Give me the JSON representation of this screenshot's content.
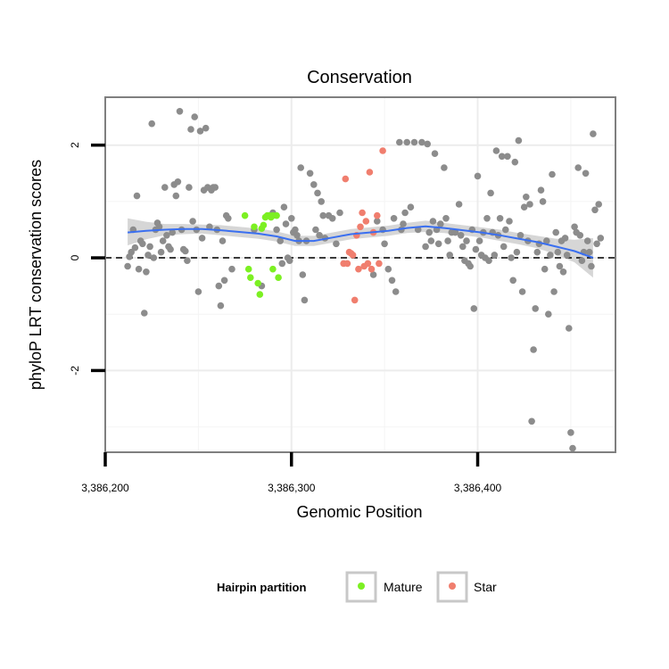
{
  "chart_data": {
    "type": "scatter",
    "title": "Conservation",
    "xlabel": "Genomic Position",
    "ylabel": "phyloP LRT conservation scores",
    "xlim": [
      3386200,
      3386474
    ],
    "ylim": [
      -3.45,
      2.85
    ],
    "x_ticks": [
      3386200,
      3386300,
      3386400
    ],
    "x_tick_labels": [
      "3,386,200",
      "3,386,300",
      "3,386,400"
    ],
    "y_ticks": [
      -2,
      0,
      2
    ],
    "y_tick_labels": [
      "-2",
      "0",
      "2"
    ],
    "grid": true,
    "reference_line": {
      "y": 0,
      "style": "dashed"
    },
    "legend": {
      "title": "Hairpin partition",
      "position": "bottom",
      "entries": [
        {
          "label": "Mature",
          "color": "#7cf022"
        },
        {
          "label": "Star",
          "color": "#f07e6e"
        }
      ]
    },
    "colors": {
      "other": "#8c8c8c",
      "smooth": "#3a6ff0",
      "band": "#cfcfcf"
    },
    "smooth_line": {
      "x": [
        3386212,
        3386222,
        3386232,
        3386242,
        3386252,
        3386262,
        3386272,
        3386282,
        3386292,
        3386302,
        3386312,
        3386322,
        3386332,
        3386342,
        3386352,
        3386362,
        3386372,
        3386382,
        3386392,
        3386402,
        3386412,
        3386422,
        3386432,
        3386442,
        3386452,
        3386462
      ],
      "y": [
        0.45,
        0.48,
        0.5,
        0.51,
        0.51,
        0.49,
        0.46,
        0.43,
        0.38,
        0.3,
        0.3,
        0.36,
        0.42,
        0.45,
        0.48,
        0.53,
        0.56,
        0.53,
        0.49,
        0.45,
        0.4,
        0.34,
        0.28,
        0.2,
        0.12,
        0.0
      ],
      "lower": [
        0.22,
        0.33,
        0.4,
        0.42,
        0.43,
        0.4,
        0.37,
        0.34,
        0.29,
        0.21,
        0.21,
        0.27,
        0.33,
        0.36,
        0.39,
        0.44,
        0.46,
        0.44,
        0.4,
        0.36,
        0.3,
        0.24,
        0.17,
        0.06,
        -0.08,
        -0.35
      ],
      "upper": [
        0.7,
        0.64,
        0.6,
        0.6,
        0.59,
        0.58,
        0.55,
        0.52,
        0.47,
        0.39,
        0.39,
        0.45,
        0.51,
        0.54,
        0.57,
        0.62,
        0.66,
        0.62,
        0.58,
        0.54,
        0.5,
        0.44,
        0.39,
        0.34,
        0.32,
        0.35
      ]
    },
    "series": [
      {
        "color": "#8c8c8c",
        "points": [
          [
            3386212,
            -0.15
          ],
          [
            3386213,
            0.02
          ],
          [
            3386214,
            0.1
          ],
          [
            3386215,
            0.5
          ],
          [
            3386216,
            0.18
          ],
          [
            3386217,
            1.1
          ],
          [
            3386218,
            -0.2
          ],
          [
            3386219,
            0.3
          ],
          [
            3386220,
            0.25
          ],
          [
            3386221,
            -0.98
          ],
          [
            3386222,
            -0.25
          ],
          [
            3386223,
            0.05
          ],
          [
            3386224,
            0.2
          ],
          [
            3386225,
            2.38
          ],
          [
            3386226,
            0.0
          ],
          [
            3386227,
            0.5
          ],
          [
            3386228,
            0.62
          ],
          [
            3386229,
            0.55
          ],
          [
            3386230,
            0.1
          ],
          [
            3386231,
            0.3
          ],
          [
            3386232,
            1.25
          ],
          [
            3386233,
            0.4
          ],
          [
            3386234,
            0.2
          ],
          [
            3386235,
            0.15
          ],
          [
            3386236,
            0.45
          ],
          [
            3386237,
            1.3
          ],
          [
            3386238,
            1.1
          ],
          [
            3386239,
            1.35
          ],
          [
            3386240,
            2.6
          ],
          [
            3386241,
            0.5
          ],
          [
            3386242,
            0.15
          ],
          [
            3386243,
            0.12
          ],
          [
            3386244,
            -0.05
          ],
          [
            3386245,
            1.25
          ],
          [
            3386246,
            2.28
          ],
          [
            3386247,
            0.65
          ],
          [
            3386248,
            2.5
          ],
          [
            3386249,
            0.5
          ],
          [
            3386250,
            -0.6
          ],
          [
            3386251,
            2.25
          ],
          [
            3386252,
            0.35
          ],
          [
            3386253,
            1.2
          ],
          [
            3386254,
            2.3
          ],
          [
            3386255,
            1.25
          ],
          [
            3386256,
            0.55
          ],
          [
            3386257,
            1.2
          ],
          [
            3386258,
            1.25
          ],
          [
            3386259,
            1.25
          ],
          [
            3386260,
            0.5
          ],
          [
            3386261,
            -0.5
          ],
          [
            3386262,
            -0.85
          ],
          [
            3386263,
            0.3
          ],
          [
            3386264,
            -0.4
          ],
          [
            3386265,
            0.75
          ],
          [
            3386266,
            0.7
          ],
          [
            3386268,
            -0.2
          ],
          [
            3386280,
            0.5
          ],
          [
            3386284,
            -0.5
          ],
          [
            3386290,
            0.8
          ],
          [
            3386292,
            0.5
          ],
          [
            3386294,
            0.3
          ],
          [
            3386295,
            -0.1
          ],
          [
            3386296,
            0.9
          ],
          [
            3386297,
            0.6
          ],
          [
            3386298,
            0.0
          ],
          [
            3386299,
            -0.05
          ],
          [
            3386300,
            0.7
          ],
          [
            3386301,
            0.45
          ],
          [
            3386302,
            0.5
          ],
          [
            3386303,
            0.4
          ],
          [
            3386304,
            0.3
          ],
          [
            3386305,
            1.6
          ],
          [
            3386306,
            -0.3
          ],
          [
            3386307,
            -0.75
          ],
          [
            3386308,
            0.3
          ],
          [
            3386310,
            1.5
          ],
          [
            3386312,
            1.3
          ],
          [
            3386313,
            0.5
          ],
          [
            3386314,
            1.15
          ],
          [
            3386315,
            0.4
          ],
          [
            3386316,
            1.0
          ],
          [
            3386317,
            0.75
          ],
          [
            3386318,
            0.35
          ],
          [
            3386320,
            0.75
          ],
          [
            3386322,
            0.7
          ],
          [
            3386324,
            0.25
          ],
          [
            3386326,
            0.8
          ],
          [
            3386344,
            -0.3
          ],
          [
            3386346,
            0.65
          ],
          [
            3386349,
            0.5
          ],
          [
            3386350,
            0.25
          ],
          [
            3386352,
            -0.2
          ],
          [
            3386354,
            -0.4
          ],
          [
            3386355,
            0.7
          ],
          [
            3386356,
            -0.6
          ],
          [
            3386358,
            2.05
          ],
          [
            3386359,
            0.5
          ],
          [
            3386360,
            0.6
          ],
          [
            3386361,
            0.8
          ],
          [
            3386362,
            2.05
          ],
          [
            3386364,
            0.9
          ],
          [
            3386366,
            2.05
          ],
          [
            3386368,
            0.5
          ],
          [
            3386370,
            2.05
          ],
          [
            3386372,
            0.2
          ],
          [
            3386373,
            2.02
          ],
          [
            3386374,
            0.45
          ],
          [
            3386375,
            0.3
          ],
          [
            3386376,
            0.65
          ],
          [
            3386377,
            1.85
          ],
          [
            3386378,
            0.5
          ],
          [
            3386379,
            0.25
          ],
          [
            3386380,
            0.6
          ],
          [
            3386382,
            1.6
          ],
          [
            3386383,
            0.7
          ],
          [
            3386384,
            0.3
          ],
          [
            3386385,
            0.05
          ],
          [
            3386386,
            0.45
          ],
          [
            3386388,
            0.45
          ],
          [
            3386390,
            0.95
          ],
          [
            3386391,
            0.4
          ],
          [
            3386392,
            0.2
          ],
          [
            3386393,
            -0.05
          ],
          [
            3386394,
            0.3
          ],
          [
            3386395,
            -0.1
          ],
          [
            3386396,
            -0.15
          ],
          [
            3386397,
            0.5
          ],
          [
            3386398,
            -0.9
          ],
          [
            3386399,
            0.15
          ],
          [
            3386400,
            1.45
          ],
          [
            3386401,
            0.3
          ],
          [
            3386402,
            0.05
          ],
          [
            3386403,
            0.45
          ],
          [
            3386404,
            0.0
          ],
          [
            3386405,
            0.7
          ],
          [
            3386406,
            -0.05
          ],
          [
            3386407,
            1.15
          ],
          [
            3386408,
            0.45
          ],
          [
            3386409,
            0.05
          ],
          [
            3386410,
            1.9
          ],
          [
            3386411,
            0.4
          ],
          [
            3386412,
            0.7
          ],
          [
            3386413,
            1.8
          ],
          [
            3386414,
            0.2
          ],
          [
            3386415,
            0.5
          ],
          [
            3386416,
            1.8
          ],
          [
            3386417,
            0.65
          ],
          [
            3386418,
            0.0
          ],
          [
            3386419,
            -0.4
          ],
          [
            3386420,
            1.7
          ],
          [
            3386421,
            0.1
          ],
          [
            3386422,
            2.08
          ],
          [
            3386423,
            0.4
          ],
          [
            3386424,
            -0.6
          ],
          [
            3386425,
            0.9
          ],
          [
            3386426,
            1.08
          ],
          [
            3386427,
            0.3
          ],
          [
            3386428,
            0.95
          ],
          [
            3386429,
            -2.9
          ],
          [
            3386430,
            -1.63
          ],
          [
            3386431,
            -0.9
          ],
          [
            3386432,
            0.1
          ],
          [
            3386433,
            0.25
          ],
          [
            3386434,
            1.2
          ],
          [
            3386435,
            1.0
          ],
          [
            3386436,
            -0.2
          ],
          [
            3386437,
            0.3
          ],
          [
            3386438,
            -1.0
          ],
          [
            3386439,
            0.05
          ],
          [
            3386440,
            1.48
          ],
          [
            3386441,
            -0.6
          ],
          [
            3386442,
            0.45
          ],
          [
            3386443,
            0.1
          ],
          [
            3386444,
            -0.15
          ],
          [
            3386445,
            0.3
          ],
          [
            3386446,
            -0.25
          ],
          [
            3386447,
            0.35
          ],
          [
            3386448,
            0.05
          ],
          [
            3386449,
            -1.25
          ],
          [
            3386450,
            -3.1
          ],
          [
            3386451,
            -3.38
          ],
          [
            3386452,
            0.55
          ],
          [
            3386453,
            0.45
          ],
          [
            3386454,
            1.6
          ],
          [
            3386455,
            0.4
          ],
          [
            3386456,
            -0.05
          ],
          [
            3386457,
            0.1
          ],
          [
            3386458,
            1.5
          ],
          [
            3386459,
            0.3
          ],
          [
            3386460,
            0.1
          ],
          [
            3386461,
            -0.15
          ],
          [
            3386462,
            2.2
          ],
          [
            3386463,
            0.85
          ],
          [
            3386464,
            0.25
          ],
          [
            3386465,
            0.95
          ],
          [
            3386466,
            0.35
          ]
        ]
      },
      {
        "name": "Mature",
        "color": "#7cf022",
        "points": [
          [
            3386275,
            0.75
          ],
          [
            3386277,
            -0.2
          ],
          [
            3386278,
            -0.35
          ],
          [
            3386280,
            0.55
          ],
          [
            3386282,
            -0.45
          ],
          [
            3386283,
            -0.65
          ],
          [
            3386284,
            0.52
          ],
          [
            3386285,
            0.58
          ],
          [
            3386286,
            0.72
          ],
          [
            3386287,
            0.75
          ],
          [
            3386288,
            0.75
          ],
          [
            3386289,
            0.72
          ],
          [
            3386290,
            0.75
          ],
          [
            3386290,
            -0.2
          ],
          [
            3386292,
            0.75
          ],
          [
            3386293,
            -0.35
          ]
        ]
      },
      {
        "name": "Star",
        "color": "#f07e6e",
        "points": [
          [
            3386328,
            -0.1
          ],
          [
            3386329,
            1.4
          ],
          [
            3386330,
            -0.1
          ],
          [
            3386331,
            0.1
          ],
          [
            3386332,
            0.08
          ],
          [
            3386333,
            0.05
          ],
          [
            3386334,
            -0.75
          ],
          [
            3386335,
            0.4
          ],
          [
            3386336,
            -0.2
          ],
          [
            3386337,
            0.55
          ],
          [
            3386338,
            0.8
          ],
          [
            3386339,
            -0.15
          ],
          [
            3386340,
            0.65
          ],
          [
            3386341,
            -0.1
          ],
          [
            3386342,
            1.52
          ],
          [
            3386343,
            -0.2
          ],
          [
            3386344,
            0.45
          ],
          [
            3386346,
            0.75
          ],
          [
            3386347,
            -0.1
          ],
          [
            3386349,
            1.9
          ]
        ]
      }
    ]
  }
}
